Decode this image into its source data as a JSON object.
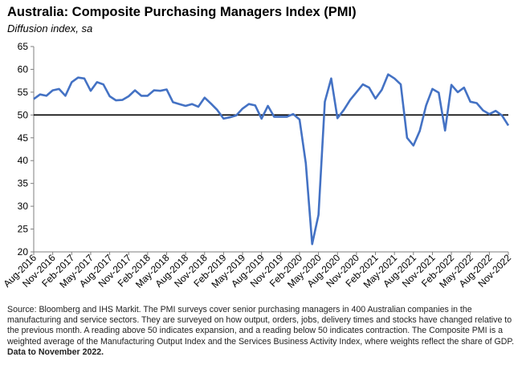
{
  "title": "Australia:  Composite Purchasing Managers Index (PMI)",
  "subtitle": "Diffusion index, sa",
  "source_text": "Source: Bloomberg and IHS Markit. The PMI surveys cover senior purchasing managers in 400 Australian companies in the manufacturing and service sectors.  They are surveyed on how output, orders, jobs, delivery times and stocks have changed relative to the previous month.  A reading above 50 indicates expansion, and a reading below 50 indicates contraction.  The Composite PMI is a weighted average of the Manufacturing Output Index and the Services Business Activity Index, where weights reflect the share of GDP.",
  "source_bold": "Data to November 2022.",
  "colors": {
    "line": "#4472C4",
    "threshold": "#000000",
    "axis": "#7f7f7f"
  },
  "chart_data": {
    "type": "line",
    "ylim": [
      20,
      65
    ],
    "yticks": [
      20,
      25,
      30,
      35,
      40,
      45,
      50,
      55,
      60,
      65
    ],
    "reference_line": 50,
    "grid": false,
    "xtick_labels": [
      "Aug-2016",
      "Nov-2016",
      "Feb-2017",
      "May-2017",
      "Aug-2017",
      "Nov-2017",
      "Feb-2018",
      "May-2018",
      "Aug-2018",
      "Nov-2018",
      "Feb-2019",
      "May-2019",
      "Aug-2019",
      "Nov-2019",
      "Feb-2020",
      "May-2020",
      "Aug-2020",
      "Nov-2020",
      "Feb-2021",
      "May-2021",
      "Aug-2021",
      "Nov-2021",
      "Feb-2022",
      "May-2022",
      "Aug-2022",
      "Nov-2022"
    ],
    "x": [
      "Aug-2016",
      "Sep-2016",
      "Oct-2016",
      "Nov-2016",
      "Dec-2016",
      "Jan-2017",
      "Feb-2017",
      "Mar-2017",
      "Apr-2017",
      "May-2017",
      "Jun-2017",
      "Jul-2017",
      "Aug-2017",
      "Sep-2017",
      "Oct-2017",
      "Nov-2017",
      "Dec-2017",
      "Jan-2018",
      "Feb-2018",
      "Mar-2018",
      "Apr-2018",
      "May-2018",
      "Jun-2018",
      "Jul-2018",
      "Aug-2018",
      "Sep-2018",
      "Oct-2018",
      "Nov-2018",
      "Dec-2018",
      "Jan-2019",
      "Feb-2019",
      "Mar-2019",
      "Apr-2019",
      "May-2019",
      "Jun-2019",
      "Jul-2019",
      "Aug-2019",
      "Sep-2019",
      "Oct-2019",
      "Nov-2019",
      "Dec-2019",
      "Jan-2020",
      "Feb-2020",
      "Mar-2020",
      "Apr-2020",
      "May-2020",
      "Jun-2020",
      "Jul-2020",
      "Aug-2020",
      "Sep-2020",
      "Oct-2020",
      "Nov-2020",
      "Dec-2020",
      "Jan-2021",
      "Feb-2021",
      "Mar-2021",
      "Apr-2021",
      "May-2021",
      "Jun-2021",
      "Jul-2021",
      "Aug-2021",
      "Sep-2021",
      "Oct-2021",
      "Nov-2021",
      "Dec-2021",
      "Jan-2022",
      "Feb-2022",
      "Mar-2022",
      "Apr-2022",
      "May-2022",
      "Jun-2022",
      "Jul-2022",
      "Aug-2022",
      "Sep-2022",
      "Oct-2022",
      "Nov-2022"
    ],
    "series": [
      {
        "values": [
          53.5,
          54.5,
          54.2,
          55.4,
          55.7,
          54.2,
          57.2,
          58.2,
          58.0,
          55.3,
          57.2,
          56.7,
          54.1,
          53.2,
          53.3,
          54.1,
          55.4,
          54.2,
          54.2,
          55.4,
          55.3,
          55.6,
          52.8,
          52.4,
          52.0,
          52.4,
          51.8,
          53.8,
          52.5,
          51.1,
          49.2,
          49.5,
          49.9,
          51.4,
          52.4,
          52.1,
          49.2,
          52.0,
          49.6,
          49.6,
          49.6,
          50.2,
          49.0,
          39.4,
          21.7,
          28.1,
          52.9,
          58.0,
          49.3,
          51.1,
          53.3,
          55.0,
          56.7,
          56.0,
          53.6,
          55.5,
          58.9,
          58.0,
          56.7,
          45.0,
          43.3,
          46.5,
          52.1,
          55.7,
          54.9,
          46.6,
          56.6,
          55.0,
          56.0,
          52.9,
          52.6,
          51.0,
          50.2,
          50.9,
          49.9,
          47.7
        ]
      }
    ]
  }
}
